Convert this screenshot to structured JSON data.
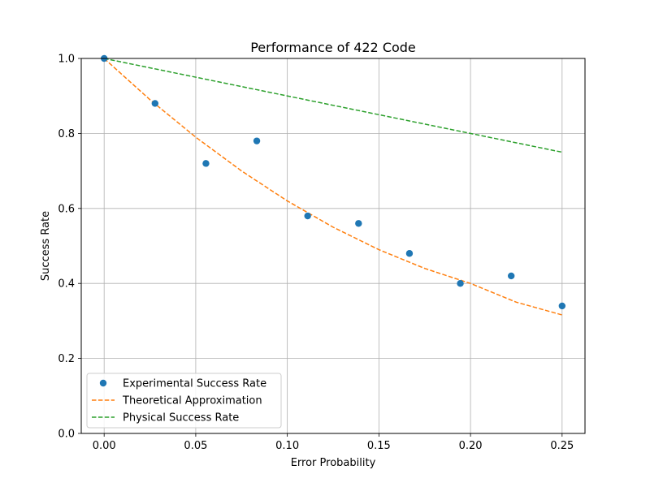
{
  "chart_data": {
    "type": "line",
    "title": "Performance of 422 Code",
    "xlabel": "Error Probability",
    "ylabel": "Success Rate",
    "xlim": [
      -0.0125,
      0.2625
    ],
    "ylim": [
      0.0,
      1.0
    ],
    "xticks": [
      0.0,
      0.05,
      0.1,
      0.15,
      0.2,
      0.25
    ],
    "xtick_labels": [
      "0.00",
      "0.05",
      "0.10",
      "0.15",
      "0.20",
      "0.25"
    ],
    "yticks": [
      0.0,
      0.2,
      0.4,
      0.6,
      0.8,
      1.0
    ],
    "ytick_labels": [
      "0.0",
      "0.2",
      "0.4",
      "0.6",
      "0.8",
      "1.0"
    ],
    "grid": true,
    "legend_position": "lower-left",
    "series": [
      {
        "name": "Experimental Success Rate",
        "style": "scatter",
        "color": "#1f77b4",
        "x": [
          0.0,
          0.02778,
          0.05556,
          0.08333,
          0.11111,
          0.13889,
          0.16667,
          0.19444,
          0.22222,
          0.25
        ],
        "y": [
          1.0,
          0.88,
          0.72,
          0.78,
          0.58,
          0.56,
          0.48,
          0.4,
          0.42,
          0.34
        ]
      },
      {
        "name": "Theoretical Approximation",
        "style": "dashed-line",
        "color": "#ff7f0e",
        "x": [
          0.0,
          0.025,
          0.05,
          0.075,
          0.1,
          0.125,
          0.15,
          0.175,
          0.2,
          0.225,
          0.25
        ],
        "y": [
          1.0,
          0.89,
          0.79,
          0.7,
          0.62,
          0.55,
          0.49,
          0.44,
          0.4,
          0.35,
          0.316
        ]
      },
      {
        "name": "Physical Success Rate",
        "style": "dashed-line",
        "color": "#2ca02c",
        "x": [
          0.0,
          0.25
        ],
        "y": [
          1.0,
          0.75
        ]
      }
    ]
  }
}
